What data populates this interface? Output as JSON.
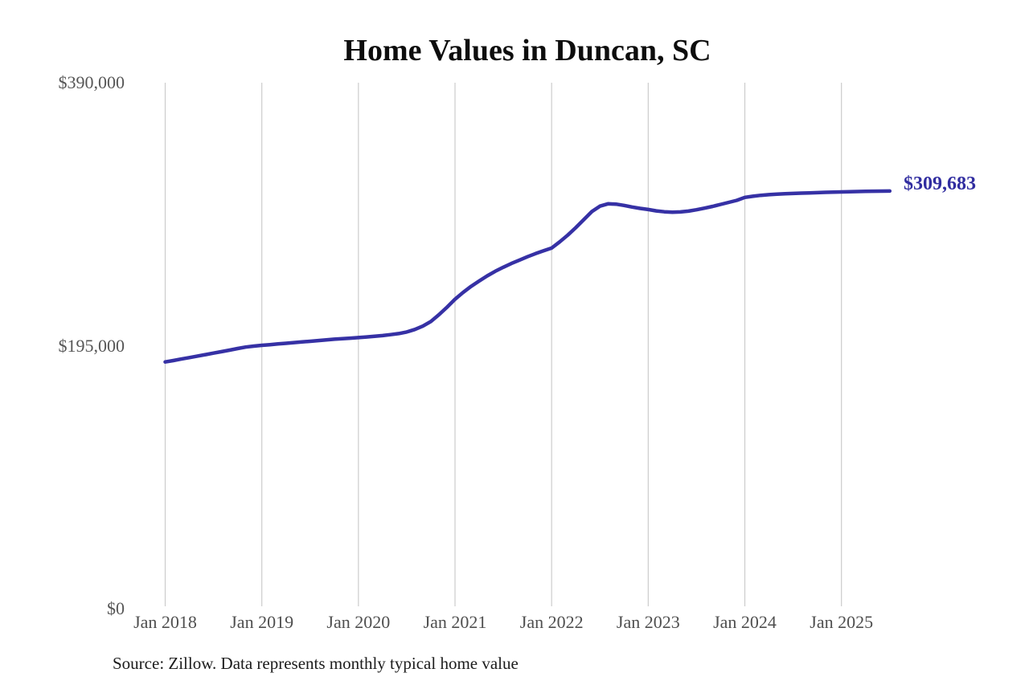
{
  "page": {
    "title": "Home Values in Duncan, SC",
    "latest_value_label": "$309,683",
    "source_note": "Source: Zillow. Data represents monthly typical home value"
  },
  "colors": {
    "line": "#3631a5",
    "latest_label": "#312da0",
    "gridline": "#cccccc",
    "axis_text": "#565656",
    "title_text": "#0d0d0d"
  },
  "chart_data": {
    "type": "line",
    "title": "Home Values in Duncan, SC",
    "series_name": "Monthly typical home value (USD)",
    "ylim": [
      0,
      390000
    ],
    "grid": "vertical-only",
    "legend": "none",
    "yticks": [
      {
        "label": "$0",
        "value": 0
      },
      {
        "label": "$195,000",
        "value": 195000
      },
      {
        "label": "$390,000",
        "value": 390000
      }
    ],
    "xticks": [
      "Jan 2018",
      "Jan 2019",
      "Jan 2020",
      "Jan 2021",
      "Jan 2022",
      "Jan 2023",
      "Jan 2024",
      "Jan 2025"
    ],
    "latest_value": 309683,
    "x": [
      "2018-01",
      "2018-02",
      "2018-03",
      "2018-04",
      "2018-05",
      "2018-06",
      "2018-07",
      "2018-08",
      "2018-09",
      "2018-10",
      "2018-11",
      "2018-12",
      "2019-01",
      "2019-02",
      "2019-03",
      "2019-04",
      "2019-05",
      "2019-06",
      "2019-07",
      "2019-08",
      "2019-09",
      "2019-10",
      "2019-11",
      "2019-12",
      "2020-01",
      "2020-02",
      "2020-03",
      "2020-04",
      "2020-05",
      "2020-06",
      "2020-07",
      "2020-08",
      "2020-09",
      "2020-10",
      "2020-11",
      "2020-12",
      "2021-01",
      "2021-02",
      "2021-03",
      "2021-04",
      "2021-05",
      "2021-06",
      "2021-07",
      "2021-08",
      "2021-09",
      "2021-10",
      "2021-11",
      "2021-12",
      "2022-01",
      "2022-02",
      "2022-03",
      "2022-04",
      "2022-05",
      "2022-06",
      "2022-07",
      "2022-08",
      "2022-09",
      "2022-10",
      "2022-11",
      "2022-12",
      "2023-01",
      "2023-02",
      "2023-03",
      "2023-04",
      "2023-05",
      "2023-06",
      "2023-07",
      "2023-08",
      "2023-09",
      "2023-10",
      "2023-11",
      "2023-12",
      "2024-01",
      "2024-02",
      "2024-03",
      "2024-04",
      "2024-05",
      "2024-06",
      "2024-07",
      "2024-08",
      "2024-09",
      "2024-10",
      "2024-11",
      "2024-12",
      "2025-01",
      "2025-02",
      "2025-03",
      "2025-04",
      "2025-05",
      "2025-06",
      "2025-07"
    ],
    "values": [
      183000,
      184000,
      185100,
      186200,
      187300,
      188400,
      189500,
      190600,
      191700,
      192900,
      194000,
      194700,
      195300,
      195800,
      196300,
      196800,
      197300,
      197800,
      198300,
      198800,
      199300,
      199800,
      200200,
      200600,
      201000,
      201500,
      202000,
      202500,
      203200,
      204000,
      205200,
      207000,
      209500,
      213000,
      218000,
      223500,
      229500,
      234500,
      239000,
      243000,
      246800,
      250200,
      253200,
      256000,
      258500,
      261000,
      263300,
      265400,
      267400,
      272000,
      277000,
      282500,
      288500,
      294500,
      298500,
      300200,
      300000,
      299000,
      297800,
      296800,
      296000,
      295000,
      294300,
      294000,
      294200,
      294800,
      295800,
      297000,
      298300,
      299800,
      301300,
      302800,
      305000,
      305800,
      306500,
      307000,
      307400,
      307700,
      307900,
      308100,
      308300,
      308500,
      308700,
      308900,
      309000,
      309200,
      309350,
      309450,
      309550,
      309620,
      309683
    ]
  }
}
